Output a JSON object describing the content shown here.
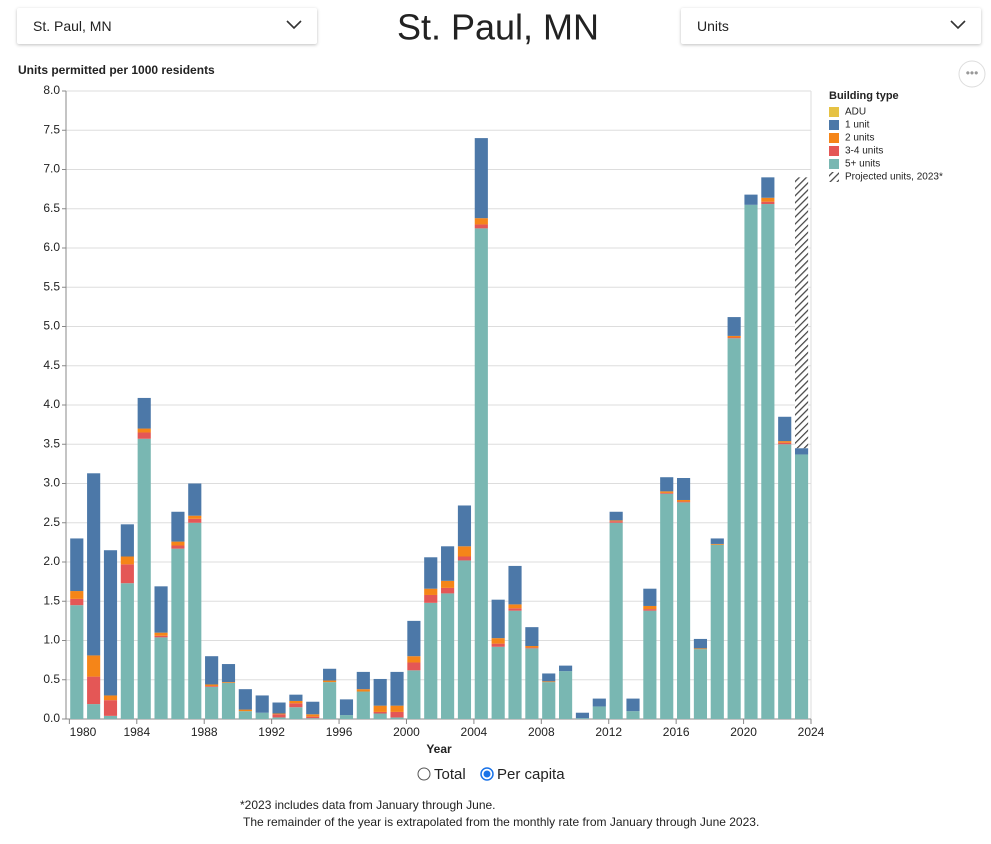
{
  "ui": {
    "location_select": "St. Paul, MN",
    "heading": "St. Paul, MN",
    "measure_select": "Units",
    "radio_total": "Total",
    "radio_per_capita": "Per capita",
    "footnote_1": "*2023 includes data from January through June.",
    "footnote_2": "The remainder of the year is extrapolated from the monthly rate from January through June 2023."
  },
  "chart_data": {
    "type": "stacked_bar",
    "y_label": "Units permitted per 1000 residents",
    "x_label": "Year",
    "legend_title": "Building type",
    "x": [
      1980,
      1981,
      1982,
      1983,
      1984,
      1985,
      1986,
      1987,
      1988,
      1989,
      1990,
      1991,
      1992,
      1993,
      1994,
      1995,
      1996,
      1997,
      1998,
      1999,
      2000,
      2001,
      2002,
      2003,
      2004,
      2005,
      2006,
      2007,
      2008,
      2009,
      2010,
      2011,
      2012,
      2013,
      2014,
      2015,
      2016,
      2017,
      2018,
      2019,
      2020,
      2021,
      2022,
      2023
    ],
    "xlim": [
      1979.8,
      2024
    ],
    "xticks": [
      1980,
      1984,
      1988,
      1992,
      1996,
      2000,
      2004,
      2008,
      2012,
      2016,
      2020,
      2024
    ],
    "ylim": [
      0,
      8
    ],
    "yticks": [
      {
        "value": 0,
        "label": "0.0"
      },
      0.5,
      {
        "value": 1,
        "label": "1.0"
      },
      1.5,
      {
        "value": 2,
        "label": "2.0"
      },
      2.5,
      {
        "value": 3,
        "label": "3.0"
      },
      3.5,
      {
        "value": 4,
        "label": "4.0"
      },
      4.5,
      {
        "value": 5,
        "label": "5.0"
      },
      5.5,
      {
        "value": 6,
        "label": "6.0"
      },
      6.5,
      {
        "value": 7,
        "label": "7.0"
      },
      7.5,
      {
        "value": 8,
        "label": "8.0"
      }
    ],
    "grid": true,
    "legend": "right",
    "series": [
      {
        "name": "ADU",
        "color": "#e6c244",
        "values": [
          0,
          0,
          0,
          0,
          0,
          0,
          0,
          0,
          0,
          0,
          0,
          0,
          0,
          0,
          0,
          0,
          0,
          0,
          0,
          0,
          0,
          0,
          0,
          0,
          0,
          0,
          0,
          0,
          0,
          0,
          0,
          0,
          0,
          0,
          0,
          0,
          0,
          0,
          0,
          0,
          0,
          0,
          0,
          0
        ]
      },
      {
        "name": "1 unit",
        "color": "#4c78a8",
        "values": [
          0.67,
          2.32,
          1.85,
          0.41,
          0.39,
          0.59,
          0.38,
          0.41,
          0.36,
          0.23,
          0.26,
          0.22,
          0.14,
          0.08,
          0.16,
          0.15,
          0.2,
          0.22,
          0.34,
          0.43,
          0.45,
          0.4,
          0.44,
          0.52,
          1.02,
          0.49,
          0.49,
          0.24,
          0.1,
          0.07,
          0.07,
          0.1,
          0.11,
          0.16,
          0.22,
          0.18,
          0.28,
          0.12,
          0.07,
          0.24,
          0.13,
          0.26,
          0.31,
          0.08
        ]
      },
      {
        "name": "2 units",
        "color": "#f58518",
        "values": [
          0.1,
          0.27,
          0.06,
          0.1,
          0.05,
          0.04,
          0.05,
          0.04,
          0.02,
          0.01,
          0.02,
          0,
          0.01,
          0.03,
          0.03,
          0.02,
          0,
          0.03,
          0.08,
          0.08,
          0.08,
          0.08,
          0.09,
          0.13,
          0.08,
          0.07,
          0.05,
          0.02,
          0.01,
          0,
          0,
          0,
          0.01,
          0,
          0.04,
          0.02,
          0.02,
          0.01,
          0.01,
          0.02,
          0,
          0.05,
          0.02,
          0
        ]
      },
      {
        "name": "3-4 units",
        "color": "#e45756",
        "values": [
          0.08,
          0.35,
          0.2,
          0.24,
          0.08,
          0.02,
          0.04,
          0.05,
          0.01,
          0,
          0,
          0,
          0.04,
          0.05,
          0.02,
          0,
          0,
          0,
          0.02,
          0.07,
          0.1,
          0.1,
          0.07,
          0.05,
          0.05,
          0.04,
          0.03,
          0.01,
          0,
          0,
          0,
          0,
          0.02,
          0,
          0.02,
          0.01,
          0.01,
          0,
          0,
          0.01,
          0,
          0.03,
          0.02,
          0
        ]
      },
      {
        "name": "5+ units",
        "color": "#79b7b2",
        "values": [
          1.45,
          0.19,
          0.04,
          1.73,
          3.57,
          1.04,
          2.17,
          2.5,
          0.41,
          0.46,
          0.1,
          0.08,
          0.02,
          0.15,
          0.01,
          0.47,
          0.05,
          0.35,
          0.07,
          0.02,
          0.62,
          1.48,
          1.6,
          2.02,
          6.25,
          0.92,
          1.38,
          0.9,
          0.47,
          0.61,
          0.01,
          0.16,
          2.5,
          0.1,
          1.38,
          2.87,
          2.76,
          0.89,
          2.22,
          4.85,
          6.55,
          6.56,
          3.5,
          3.37
        ]
      },
      {
        "name": "Projected units, 2023*",
        "color": "#444444",
        "pattern": "hatch",
        "values": [
          null,
          null,
          null,
          null,
          null,
          null,
          null,
          null,
          null,
          null,
          null,
          null,
          null,
          null,
          null,
          null,
          null,
          null,
          null,
          null,
          null,
          null,
          null,
          null,
          null,
          null,
          null,
          null,
          null,
          null,
          null,
          null,
          null,
          null,
          null,
          null,
          null,
          null,
          null,
          null,
          null,
          null,
          null,
          3.45
        ]
      }
    ]
  }
}
